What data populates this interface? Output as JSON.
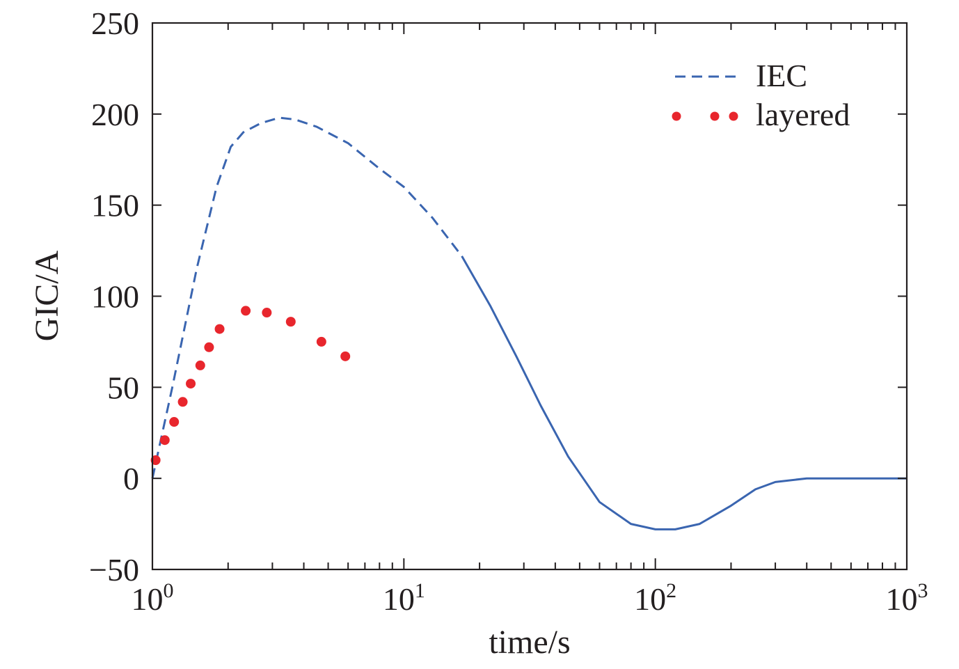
{
  "chart_data": {
    "type": "line",
    "xlabel": "time/s",
    "ylabel": "GIC/A",
    "xscale": "log",
    "xlim": [
      1,
      1000
    ],
    "ylim": [
      -50,
      250
    ],
    "yticks": [
      -50,
      0,
      50,
      100,
      150,
      200,
      250
    ],
    "ytick_labels": [
      "−50",
      "0",
      "50",
      "100",
      "150",
      "200",
      "250"
    ],
    "xticks": [
      {
        "value": 1,
        "base": "10",
        "exp": "0"
      },
      {
        "value": 10,
        "base": "10",
        "exp": "1"
      },
      {
        "value": 100,
        "base": "10",
        "exp": "2"
      },
      {
        "value": 1000,
        "base": "10",
        "exp": "3"
      }
    ],
    "grid": false,
    "legend_position": "top-right",
    "series": [
      {
        "name": "IEC",
        "style": "dashed-line",
        "color": "#3a65b0",
        "x": [
          1,
          1.2,
          1.5,
          1.8,
          2.05,
          2.3,
          2.7,
          3.2,
          3.7,
          4.5,
          6,
          8,
          10,
          13,
          17,
          22,
          28,
          35,
          45,
          60,
          80,
          100,
          120,
          150,
          200,
          250,
          300,
          400,
          500,
          700,
          1000
        ],
        "y": [
          0,
          50,
          115,
          160,
          182,
          190,
          195,
          198,
          197,
          193,
          184,
          170,
          160,
          143,
          122,
          95,
          67,
          40,
          12,
          -13,
          -25,
          -28,
          -28,
          -25,
          -15,
          -6,
          -2,
          0,
          0,
          0,
          0
        ]
      },
      {
        "name": "layered",
        "style": "dotted-markers",
        "color": "#e8262d",
        "x": [
          1.03,
          1.12,
          1.22,
          1.32,
          1.42,
          1.55,
          1.68,
          1.85,
          2.35,
          2.85,
          3.55,
          4.7,
          5.85
        ],
        "y": [
          10,
          21,
          31,
          42,
          52,
          62,
          72,
          82,
          92,
          91,
          86,
          75,
          67
        ]
      }
    ]
  }
}
